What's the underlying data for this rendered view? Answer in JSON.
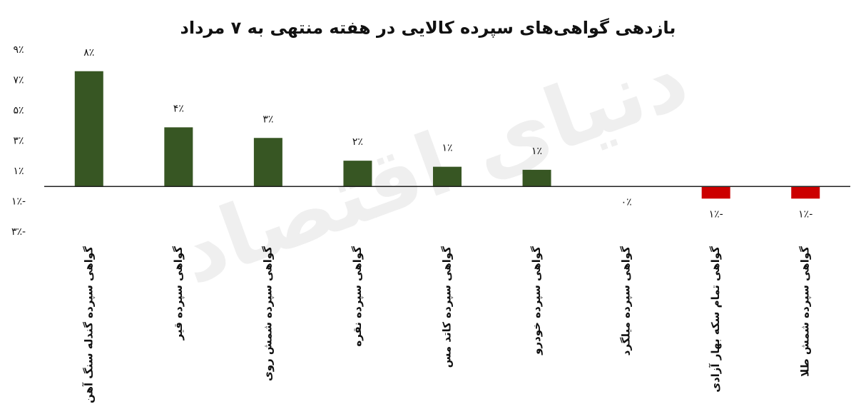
{
  "chart_data": {
    "type": "bar",
    "title": "بازدهی گواهی‌های سپرده کالایی در هفته منتهی به ۷ مرداد",
    "watermark": "دنیای اقتصاد",
    "categories": [
      "گواهی سپرده گندله سنگ آهن",
      "گواهی سپرده قیر",
      "گواهی سپرده شمش روی",
      "گواهی سپرده نقره",
      "گواهی سپرده کاتد مس",
      "گواهی سپرده خودرو",
      "گواهی سپرده میلگرد",
      "گواهی تمام سکه بهار آزادی",
      "گواهی سپرده شمش طلا"
    ],
    "values": [
      7.6,
      3.9,
      3.2,
      1.7,
      1.3,
      1.1,
      0,
      -0.8,
      -0.8
    ],
    "value_labels": [
      "۸٪",
      "۴٪",
      "۳٪",
      "۲٪",
      "۱٪",
      "۱٪",
      "۰٪",
      "-۱٪",
      "-۱٪"
    ],
    "positive_color": "#375623",
    "negative_color": "#cc0000",
    "ylim": [
      -3,
      9
    ],
    "yticks": [
      {
        "value": 9,
        "label": "۹٪"
      },
      {
        "value": 7,
        "label": "۷٪"
      },
      {
        "value": 5,
        "label": "۵٪"
      },
      {
        "value": 3,
        "label": "۳٪"
      },
      {
        "value": 1,
        "label": "۱٪"
      },
      {
        "value": -1,
        "label": "-۱٪"
      },
      {
        "value": -3,
        "label": "-۳٪"
      }
    ],
    "grid": false
  }
}
